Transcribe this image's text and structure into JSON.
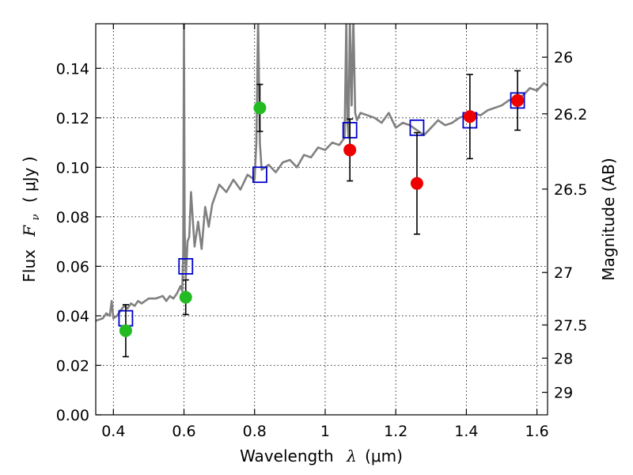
{
  "chart_data": {
    "type": "scatter",
    "xlabel_text": "Wavelength",
    "xlabel_sym": "λ",
    "xlabel_unit": "(μm)",
    "ylabel_text": "Flux",
    "ylabel_sym": "F",
    "ylabel_sub": "ν",
    "ylabel_unit": "( μJy )",
    "y2label": "Magnitude (AB)",
    "xlim": [
      0.35,
      1.63
    ],
    "ylim": [
      0.0,
      0.158
    ],
    "grid": true,
    "x_ticks": [
      {
        "v": 0.4,
        "label": "0.4"
      },
      {
        "v": 0.6,
        "label": "0.6"
      },
      {
        "v": 0.8,
        "label": "0.8"
      },
      {
        "v": 1.0,
        "label": "1"
      },
      {
        "v": 1.2,
        "label": "1.2"
      },
      {
        "v": 1.4,
        "label": "1.4"
      },
      {
        "v": 1.6,
        "label": "1.6"
      }
    ],
    "y_ticks": [
      {
        "v": 0.0,
        "label": "0.00"
      },
      {
        "v": 0.02,
        "label": "0.02"
      },
      {
        "v": 0.04,
        "label": "0.04"
      },
      {
        "v": 0.06,
        "label": "0.06"
      },
      {
        "v": 0.08,
        "label": "0.08"
      },
      {
        "v": 0.1,
        "label": "0.10"
      },
      {
        "v": 0.12,
        "label": "0.12"
      },
      {
        "v": 0.14,
        "label": "0.14"
      }
    ],
    "y2_ticks": [
      {
        "flux": 0.1445,
        "label": "26"
      },
      {
        "flux": 0.1216,
        "label": "26.2"
      },
      {
        "flux": 0.0912,
        "label": "26.5"
      },
      {
        "flux": 0.0575,
        "label": "27"
      },
      {
        "flux": 0.0363,
        "label": "27.5"
      },
      {
        "flux": 0.0229,
        "label": "28"
      },
      {
        "flux": 0.0091,
        "label": "29"
      }
    ],
    "series": [
      {
        "kind": "line",
        "color": "#808080",
        "x": [
          0.35,
          0.37,
          0.38,
          0.39,
          0.395,
          0.4,
          0.41,
          0.42,
          0.43,
          0.44,
          0.45,
          0.46,
          0.47,
          0.48,
          0.5,
          0.52,
          0.54,
          0.55,
          0.56,
          0.57,
          0.58,
          0.59,
          0.595,
          0.598,
          0.6,
          0.602,
          0.605,
          0.61,
          0.615,
          0.62,
          0.63,
          0.64,
          0.65,
          0.66,
          0.67,
          0.68,
          0.7,
          0.72,
          0.74,
          0.76,
          0.78,
          0.8,
          0.805,
          0.81,
          0.815,
          0.82,
          0.84,
          0.86,
          0.88,
          0.9,
          0.92,
          0.94,
          0.96,
          0.98,
          1.0,
          1.02,
          1.04,
          1.055,
          1.06,
          1.063,
          1.066,
          1.07,
          1.075,
          1.08,
          1.085,
          1.09,
          1.1,
          1.12,
          1.14,
          1.16,
          1.18,
          1.2,
          1.22,
          1.24,
          1.26,
          1.28,
          1.3,
          1.32,
          1.34,
          1.36,
          1.38,
          1.4,
          1.42,
          1.44,
          1.46,
          1.5,
          1.52,
          1.54,
          1.56,
          1.58,
          1.6,
          1.62,
          1.63
        ],
        "y": [
          0.038,
          0.039,
          0.041,
          0.04,
          0.046,
          0.039,
          0.04,
          0.042,
          0.044,
          0.043,
          0.045,
          0.044,
          0.046,
          0.045,
          0.047,
          0.047,
          0.048,
          0.046,
          0.048,
          0.047,
          0.049,
          0.052,
          0.05,
          0.066,
          0.16,
          0.075,
          0.055,
          0.07,
          0.072,
          0.09,
          0.068,
          0.078,
          0.067,
          0.084,
          0.076,
          0.085,
          0.093,
          0.09,
          0.095,
          0.091,
          0.097,
          0.095,
          0.11,
          0.16,
          0.11,
          0.099,
          0.101,
          0.098,
          0.102,
          0.103,
          0.1,
          0.105,
          0.104,
          0.108,
          0.107,
          0.11,
          0.109,
          0.112,
          0.16,
          0.118,
          0.112,
          0.16,
          0.125,
          0.16,
          0.122,
          0.119,
          0.122,
          0.121,
          0.12,
          0.118,
          0.122,
          0.116,
          0.118,
          0.117,
          0.115,
          0.113,
          0.116,
          0.119,
          0.117,
          0.118,
          0.12,
          0.121,
          0.122,
          0.121,
          0.123,
          0.125,
          0.127,
          0.128,
          0.129,
          0.132,
          0.131,
          0.134,
          0.133
        ]
      },
      {
        "kind": "squares",
        "color": "#0000cc",
        "x": [
          0.435,
          0.605,
          0.815,
          1.07,
          1.26,
          1.41,
          1.545
        ],
        "y": [
          0.039,
          0.06,
          0.097,
          0.115,
          0.116,
          0.119,
          0.127
        ]
      },
      {
        "kind": "points",
        "color": "#22bb22",
        "x": [
          0.435,
          0.605,
          0.815
        ],
        "y": [
          0.034,
          0.0475,
          0.124
        ],
        "err": [
          0.0105,
          0.007,
          0.0095
        ]
      },
      {
        "kind": "points",
        "color": "#ee0000",
        "x": [
          1.07,
          1.26,
          1.41,
          1.545
        ],
        "y": [
          0.107,
          0.0935,
          0.1205,
          0.127
        ],
        "err": [
          0.0125,
          0.0205,
          0.017,
          0.012
        ]
      }
    ]
  }
}
